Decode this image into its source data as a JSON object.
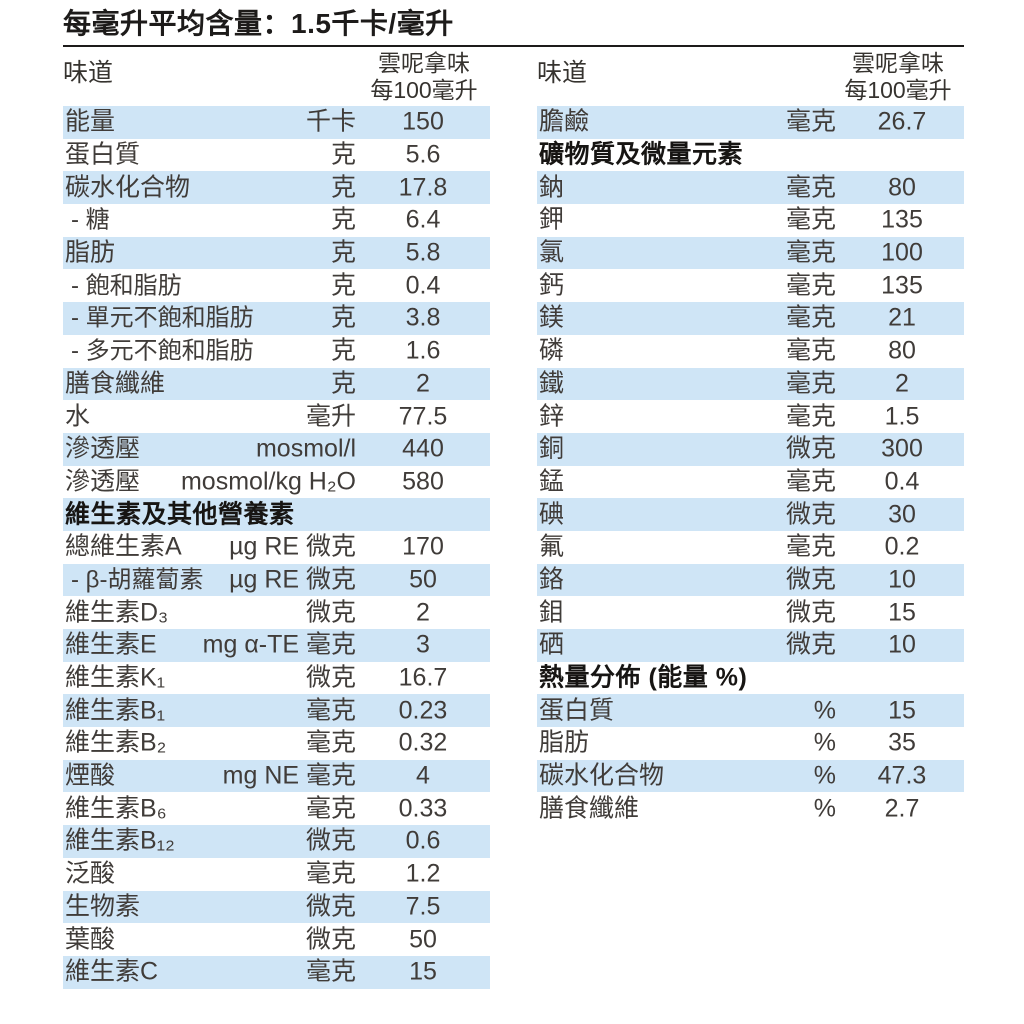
{
  "title": "每毫升平均含量：1.5千卡/毫升",
  "colors": {
    "stripe_blue": "#cfe5f6",
    "text": "#403c39",
    "heading_text": "#1d1b1a"
  },
  "left_table": {
    "header": {
      "flavor_label": "味道",
      "variant": "雲呢拿味",
      "per": "每100毫升"
    },
    "rows": [
      {
        "name": "能量",
        "unit": "千卡",
        "value": "150"
      },
      {
        "name": "蛋白質",
        "unit": "克",
        "value": "5.6"
      },
      {
        "name": "碳水化合物",
        "unit": "克",
        "value": "17.8"
      },
      {
        "name": "- 糖",
        "unit": "克",
        "value": "6.4",
        "type": "sub"
      },
      {
        "name": "脂肪",
        "unit": "克",
        "value": "5.8"
      },
      {
        "name": "- 飽和脂肪",
        "unit": "克",
        "value": "0.4",
        "type": "sub"
      },
      {
        "name": "- 單元不飽和脂肪",
        "unit": "克",
        "value": "3.8",
        "type": "sub"
      },
      {
        "name": "- 多元不飽和脂肪",
        "unit": "克",
        "value": "1.6",
        "type": "sub"
      },
      {
        "name": "膳食纖維",
        "unit": "克",
        "value": "2"
      },
      {
        "name": "水",
        "unit": "毫升",
        "value": "77.5"
      },
      {
        "name": "滲透壓",
        "unit": "mosmol/l",
        "value": "440"
      },
      {
        "name": "滲透壓",
        "unit": "mosmol/kg H₂O",
        "value": "580"
      },
      {
        "name": "維生素及其他營養素",
        "unit": "",
        "value": "",
        "type": "section"
      },
      {
        "name": "總維生素A",
        "unit": "µg RE 微克",
        "value": "170"
      },
      {
        "name": "- β-胡蘿蔔素",
        "unit": "µg RE 微克",
        "value": "50",
        "type": "sub"
      },
      {
        "name": "維生素D₃",
        "unit": "微克",
        "value": "2"
      },
      {
        "name": "維生素E",
        "unit": "mg α-TE 毫克",
        "value": "3"
      },
      {
        "name": "維生素K₁",
        "unit": "微克",
        "value": "16.7"
      },
      {
        "name": "維生素B₁",
        "unit": "毫克",
        "value": "0.23"
      },
      {
        "name": "維生素B₂",
        "unit": "毫克",
        "value": "0.32"
      },
      {
        "name": "煙酸",
        "unit": "mg NE 毫克",
        "value": "4"
      },
      {
        "name": "維生素B₆",
        "unit": "毫克",
        "value": "0.33"
      },
      {
        "name": "維生素B₁₂",
        "unit": "微克",
        "value": "0.6"
      },
      {
        "name": "泛酸",
        "unit": "毫克",
        "value": "1.2"
      },
      {
        "name": "生物素",
        "unit": "微克",
        "value": "7.5"
      },
      {
        "name": "葉酸",
        "unit": "微克",
        "value": "50"
      },
      {
        "name": "維生素C",
        "unit": "毫克",
        "value": "15"
      }
    ]
  },
  "right_table": {
    "header": {
      "flavor_label": "味道",
      "variant": "雲呢拿味",
      "per": "每100毫升"
    },
    "rows": [
      {
        "name": "膽鹼",
        "unit": "毫克",
        "value": "26.7"
      },
      {
        "name": "礦物質及微量元素",
        "unit": "",
        "value": "",
        "type": "section"
      },
      {
        "name": "鈉",
        "unit": "毫克",
        "value": "80"
      },
      {
        "name": "鉀",
        "unit": "毫克",
        "value": "135"
      },
      {
        "name": "氯",
        "unit": "毫克",
        "value": "100"
      },
      {
        "name": "鈣",
        "unit": "毫克",
        "value": "135"
      },
      {
        "name": "鎂",
        "unit": "毫克",
        "value": "21"
      },
      {
        "name": "磷",
        "unit": "毫克",
        "value": "80"
      },
      {
        "name": "鐵",
        "unit": "毫克",
        "value": "2"
      },
      {
        "name": "鋅",
        "unit": "毫克",
        "value": "1.5"
      },
      {
        "name": "銅",
        "unit": "微克",
        "value": "300"
      },
      {
        "name": "錳",
        "unit": "毫克",
        "value": "0.4"
      },
      {
        "name": "碘",
        "unit": "微克",
        "value": "30"
      },
      {
        "name": "氟",
        "unit": "毫克",
        "value": "0.2"
      },
      {
        "name": "鉻",
        "unit": "微克",
        "value": "10"
      },
      {
        "name": "鉬",
        "unit": "微克",
        "value": "15"
      },
      {
        "name": "硒",
        "unit": "微克",
        "value": "10"
      },
      {
        "name": "熱量分佈 (能量 %)",
        "unit": "",
        "value": "",
        "type": "section"
      },
      {
        "name": "蛋白質",
        "unit": "%",
        "value": "15"
      },
      {
        "name": "脂肪",
        "unit": "%",
        "value": "35"
      },
      {
        "name": "碳水化合物",
        "unit": "%",
        "value": "47.3"
      },
      {
        "name": "膳食纖維",
        "unit": "%",
        "value": "2.7"
      }
    ]
  }
}
